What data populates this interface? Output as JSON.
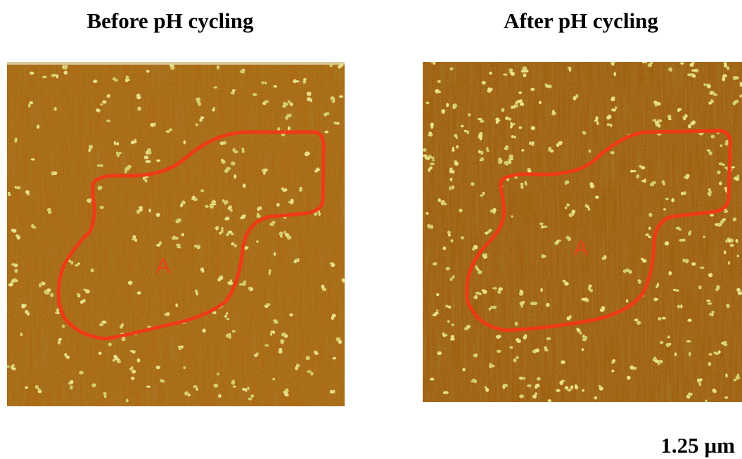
{
  "panels": [
    {
      "title": "Before pH cycling",
      "region_label": "A"
    },
    {
      "title": "After pH cycling",
      "region_label": "A"
    }
  ],
  "scale_label": "1.25 µm"
}
